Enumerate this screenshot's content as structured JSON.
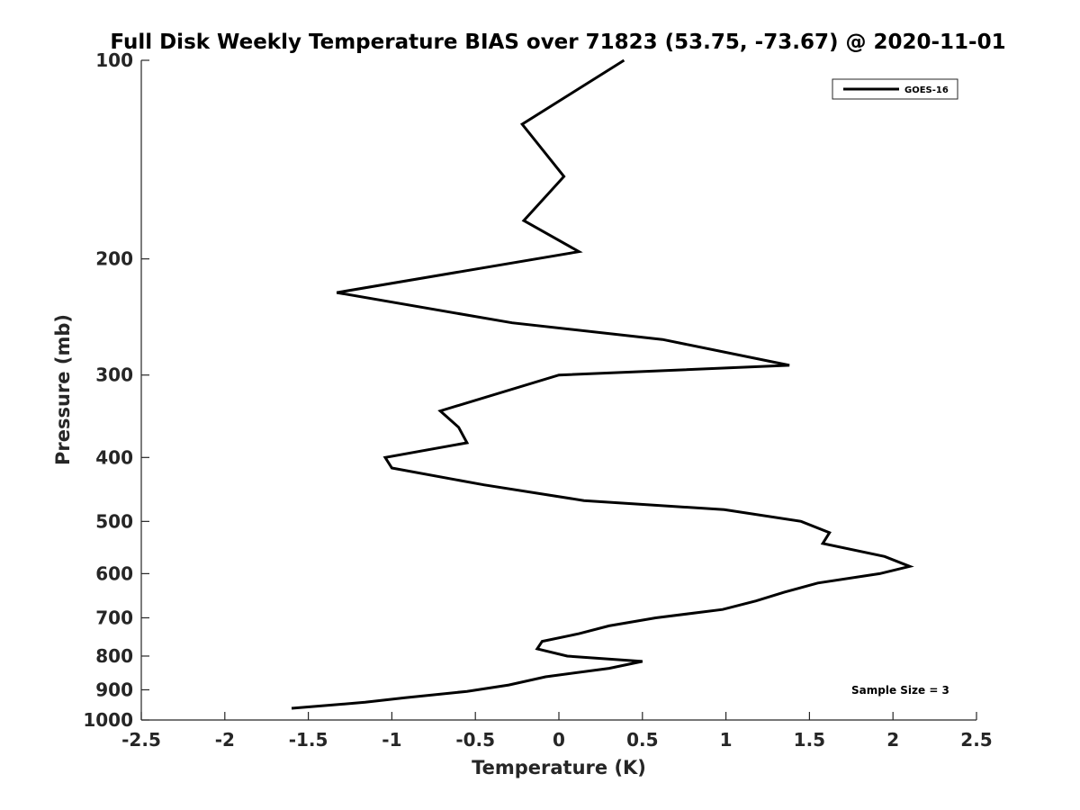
{
  "chart_data": {
    "type": "line",
    "title": "Full Disk Weekly Temperature BIAS over 71823 (53.75, -73.67) @ 2020-11-01",
    "xlabel": "Temperature (K)",
    "ylabel": "Pressure (mb)",
    "xlim": [
      -2.5,
      2.5
    ],
    "ylim": [
      1000,
      100
    ],
    "y_scale": "log",
    "y_reversed": true,
    "x_ticks": [
      "-2.5",
      "-2",
      "-1.5",
      "-1",
      "-0.5",
      "0",
      "0.5",
      "1",
      "1.5",
      "2",
      "2.5"
    ],
    "x_tick_values": [
      -2.5,
      -2,
      -1.5,
      -1,
      -0.5,
      0,
      0.5,
      1,
      1.5,
      2,
      2.5
    ],
    "y_ticks": [
      "100",
      "200",
      "300",
      "400",
      "500",
      "600",
      "700",
      "800",
      "900",
      "1000"
    ],
    "y_tick_values": [
      100,
      200,
      300,
      400,
      500,
      600,
      700,
      800,
      900,
      1000
    ],
    "grid": false,
    "legend_position": "top-right",
    "series": [
      {
        "name": "GOES-16",
        "color": "#000000",
        "points": [
          {
            "x": 0.39,
            "p": 100
          },
          {
            "x": -0.22,
            "p": 125
          },
          {
            "x": 0.03,
            "p": 150
          },
          {
            "x": -0.21,
            "p": 175
          },
          {
            "x": 0.12,
            "p": 195
          },
          {
            "x": -1.33,
            "p": 225
          },
          {
            "x": -0.28,
            "p": 250
          },
          {
            "x": 0.62,
            "p": 265
          },
          {
            "x": 1.38,
            "p": 290
          },
          {
            "x": 0.0,
            "p": 300
          },
          {
            "x": -0.71,
            "p": 340
          },
          {
            "x": -0.6,
            "p": 360
          },
          {
            "x": -0.55,
            "p": 380
          },
          {
            "x": -1.04,
            "p": 400
          },
          {
            "x": -1.0,
            "p": 415
          },
          {
            "x": -0.45,
            "p": 440
          },
          {
            "x": 0.15,
            "p": 465
          },
          {
            "x": 0.99,
            "p": 480
          },
          {
            "x": 1.45,
            "p": 500
          },
          {
            "x": 1.62,
            "p": 520
          },
          {
            "x": 1.58,
            "p": 540
          },
          {
            "x": 1.95,
            "p": 565
          },
          {
            "x": 2.1,
            "p": 585
          },
          {
            "x": 1.92,
            "p": 600
          },
          {
            "x": 1.55,
            "p": 620
          },
          {
            "x": 1.35,
            "p": 640
          },
          {
            "x": 1.18,
            "p": 660
          },
          {
            "x": 0.98,
            "p": 680
          },
          {
            "x": 0.58,
            "p": 700
          },
          {
            "x": 0.3,
            "p": 720
          },
          {
            "x": 0.12,
            "p": 740
          },
          {
            "x": -0.1,
            "p": 760
          },
          {
            "x": -0.13,
            "p": 780
          },
          {
            "x": 0.05,
            "p": 800
          },
          {
            "x": 0.5,
            "p": 815
          },
          {
            "x": 0.3,
            "p": 835
          },
          {
            "x": -0.08,
            "p": 860
          },
          {
            "x": -0.3,
            "p": 885
          },
          {
            "x": -0.55,
            "p": 905
          },
          {
            "x": -0.92,
            "p": 925
          },
          {
            "x": -1.16,
            "p": 940
          },
          {
            "x": -1.6,
            "p": 960
          }
        ]
      }
    ],
    "annotation": "Sample Size = 3"
  }
}
